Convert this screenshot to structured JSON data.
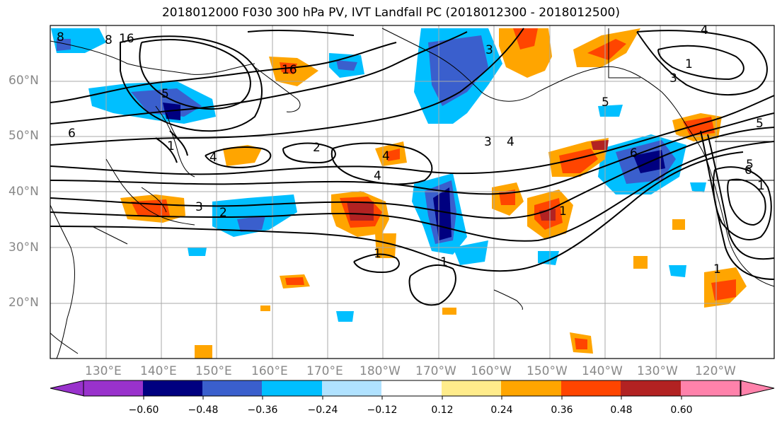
{
  "title": "2018012000 F030 300 hPa PV, IVT Landfall PC (2018012300 - 2018012500)",
  "map": {
    "lat_labels": [
      "60°N",
      "50°N",
      "40°N",
      "30°N",
      "20°N"
    ],
    "lon_labels": [
      "130°E",
      "140°E",
      "150°E",
      "160°E",
      "170°E",
      "180°W",
      "170°W",
      "160°W",
      "150°W",
      "140°W",
      "130°W",
      "120°W"
    ],
    "contour_labels": [
      "8",
      "16",
      "5",
      "6",
      "3",
      "4",
      "2",
      "1",
      "1",
      "2",
      "3",
      "4",
      "4",
      "1",
      "1",
      "1",
      "3",
      "4",
      "5",
      "6",
      "6",
      "5",
      "1",
      "3",
      "1",
      "16",
      "8",
      "4",
      "5"
    ]
  },
  "colorbar": {
    "colors": [
      "#9932cc",
      "#000080",
      "#3a5fcd",
      "#00bfff",
      "#b0e2ff",
      "#ffffff",
      "#ffec8b",
      "#ffa500",
      "#ff4500",
      "#b22222",
      "#ff82ab"
    ],
    "tick_labels": [
      "−0.60",
      "−0.48",
      "−0.36",
      "−0.24",
      "−0.12",
      "0.12",
      "0.24",
      "0.36",
      "0.48",
      "0.60"
    ]
  }
}
